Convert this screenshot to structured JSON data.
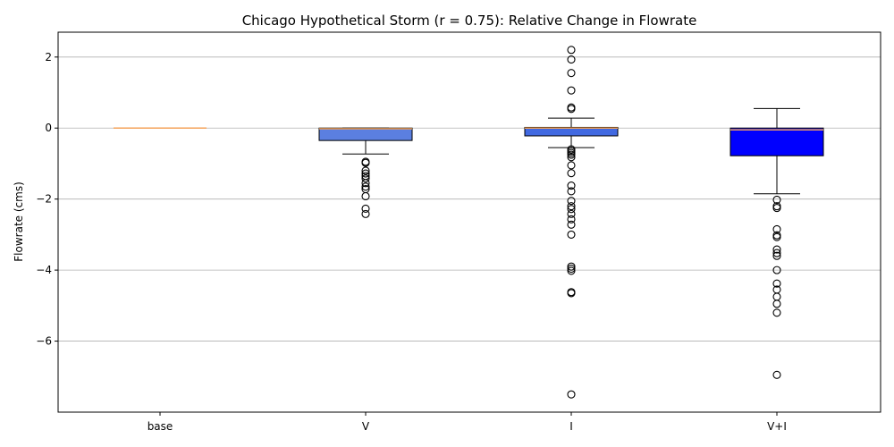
{
  "chart_data": {
    "type": "box",
    "title": "Chicago Hypothetical Storm (r = 0.75): Relative Change in Flowrate",
    "xlabel": "",
    "ylabel": "Flowrate (cms)",
    "ylim": [
      -8.0,
      2.7
    ],
    "yticks": [
      2,
      0,
      -2,
      -4,
      -6
    ],
    "ytick_labels": [
      "2",
      "0",
      "−2",
      "−4",
      "−6"
    ],
    "grid": "horizontal",
    "categories": [
      "base",
      "V",
      "I",
      "V+I"
    ],
    "boxes": [
      {
        "category": "base",
        "fill": "#4a6fdc",
        "q1": 0,
        "median": 0,
        "q3": 0,
        "whisker_low": 0,
        "whisker_high": 0,
        "outliers": []
      },
      {
        "category": "V",
        "fill": "#5b7fe0",
        "q1": -0.35,
        "median": -0.02,
        "q3": 0.0,
        "whisker_low": -0.73,
        "whisker_high": 0.0,
        "outliers": [
          -0.95,
          -0.98,
          -1.2,
          -1.28,
          -1.35,
          -1.42,
          -1.55,
          -1.65,
          -1.72,
          -1.92,
          -2.27,
          -2.42
        ]
      },
      {
        "category": "I",
        "fill": "#4169e1",
        "q1": -0.22,
        "median": 0.0,
        "q3": 0.02,
        "whisker_low": -0.55,
        "whisker_high": 0.28,
        "outliers": [
          2.2,
          1.93,
          1.55,
          1.06,
          0.58,
          0.54,
          -0.6,
          -0.65,
          -0.7,
          -0.75,
          -0.82,
          -1.05,
          -1.27,
          -1.62,
          -1.78,
          -2.05,
          -2.2,
          -2.28,
          -2.42,
          -2.57,
          -2.72,
          -3.0,
          -3.9,
          -3.96,
          -4.02,
          -4.62,
          -4.65,
          -7.5
        ]
      },
      {
        "category": "V+I",
        "fill": "#0000ff",
        "q1": -0.78,
        "median": -0.05,
        "q3": 0.0,
        "whisker_low": -1.85,
        "whisker_high": 0.55,
        "outliers": [
          -2.02,
          -2.2,
          -2.25,
          -2.85,
          -3.02,
          -3.07,
          -3.42,
          -3.52,
          -3.6,
          -4.0,
          -4.38,
          -4.55,
          -4.75,
          -4.95,
          -5.2,
          -6.95
        ]
      }
    ],
    "median_color": "#f4a259"
  }
}
